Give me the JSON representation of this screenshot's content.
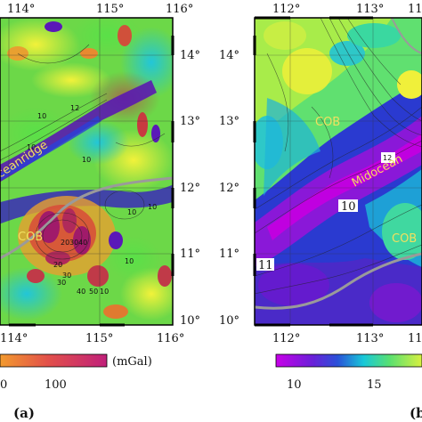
{
  "panels": [
    {
      "label": "(a)",
      "x_ticks": [
        "114°",
        "115°",
        "116°"
      ],
      "y_ticks": [
        "14°",
        "13°",
        "12°",
        "11°",
        "10°"
      ],
      "annotations": [
        "ceanridge",
        "COB"
      ],
      "contour_labels": [
        "12",
        "10",
        "10",
        "10",
        "10",
        "10",
        "20",
        "30",
        "40",
        "20",
        "30",
        "40",
        "50",
        "30",
        "10",
        "10"
      ],
      "colorbar": {
        "ticks": [
          "0",
          "100"
        ],
        "unit": "(mGal)"
      }
    },
    {
      "label": "(b)",
      "x_ticks": [
        "112°",
        "113°",
        "11"
      ],
      "x_ticks_bottom": [
        "112°",
        "113°",
        "11"
      ],
      "y_ticks": [
        "14°",
        "13°",
        "12°",
        "11°",
        "10°"
      ],
      "annotations": [
        "COB",
        "Midocean",
        "COB"
      ],
      "contour_labels": [
        "12",
        "10",
        "11"
      ],
      "colorbar": {
        "ticks": [
          "10",
          "15"
        ]
      }
    }
  ],
  "colors": {
    "a_palette": [
      "#5a1aa8",
      "#2a40d8",
      "#1ab8d8",
      "#3ed64a",
      "#f0e83a",
      "#f29a2e",
      "#d03a38",
      "#b82a7a"
    ],
    "b_palette": [
      "#c200e0",
      "#7a18d8",
      "#3a3ad0",
      "#1ea0d6",
      "#3edc9a",
      "#9aea4a",
      "#f0f03a"
    ]
  }
}
